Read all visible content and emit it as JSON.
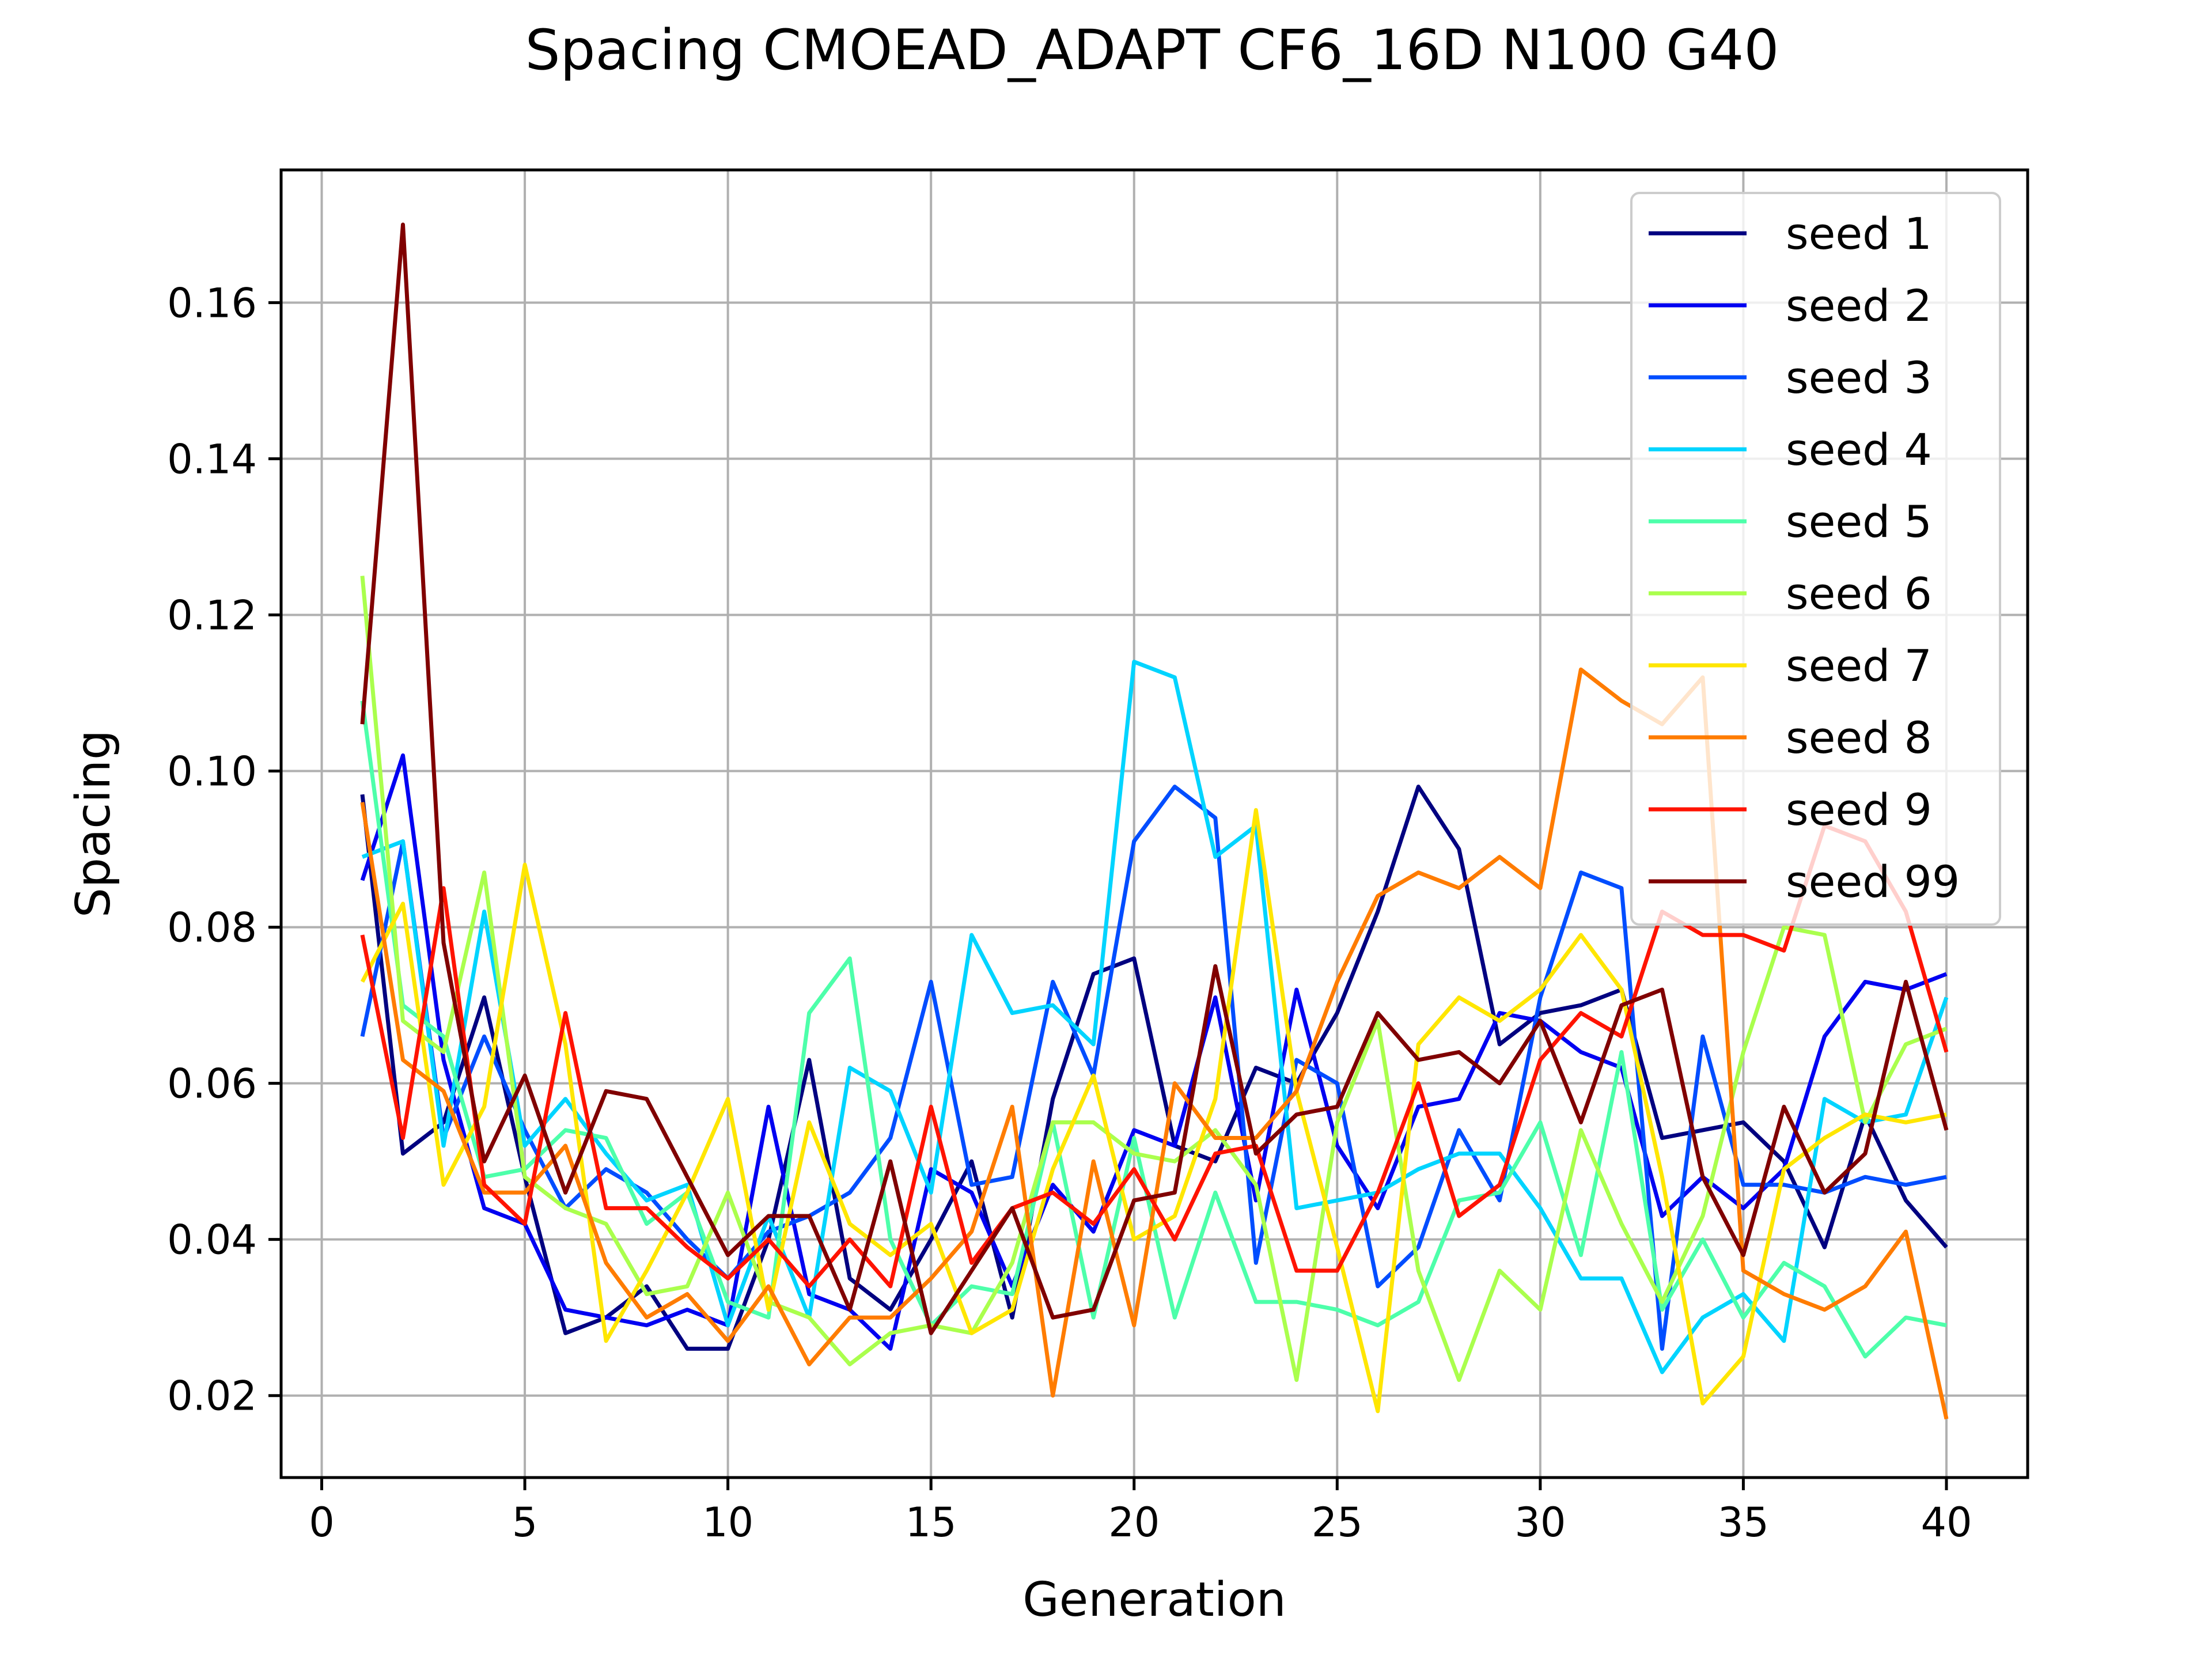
{
  "chart_data": {
    "type": "line",
    "title": "Spacing CMOEAD_ADAPT CF6_16D N100 G40",
    "xlabel": "Generation",
    "ylabel": "Spacing",
    "xlim": [
      -1,
      42
    ],
    "ylim": [
      0.0095,
      0.177
    ],
    "xticks": [
      0,
      5,
      10,
      15,
      20,
      25,
      30,
      35,
      40
    ],
    "yticks": [
      0.02,
      0.04,
      0.06,
      0.08,
      0.1,
      0.12,
      0.14,
      0.16
    ],
    "xtick_labels": [
      "0",
      "5",
      "10",
      "15",
      "20",
      "25",
      "30",
      "35",
      "40"
    ],
    "ytick_labels": [
      "0.02",
      "0.04",
      "0.06",
      "0.08",
      "0.10",
      "0.12",
      "0.14",
      "0.16"
    ],
    "grid": true,
    "legend": "top-right",
    "x": [
      1,
      2,
      3,
      4,
      5,
      6,
      7,
      8,
      9,
      10,
      11,
      12,
      13,
      14,
      15,
      16,
      17,
      18,
      19,
      20,
      21,
      22,
      23,
      24,
      25,
      26,
      27,
      28,
      29,
      30,
      31,
      32,
      33,
      34,
      35,
      36,
      37,
      38,
      39,
      40
    ],
    "series": [
      {
        "name": "seed 1",
        "color": "#000080",
        "values": [
          0.097,
          0.051,
          0.055,
          0.071,
          0.048,
          0.028,
          0.03,
          0.034,
          0.026,
          0.026,
          0.04,
          0.063,
          0.035,
          0.031,
          0.04,
          0.05,
          0.03,
          0.058,
          0.074,
          0.076,
          0.052,
          0.05,
          0.062,
          0.06,
          0.069,
          0.082,
          0.098,
          0.09,
          0.065,
          0.069,
          0.07,
          0.072,
          0.053,
          0.054,
          0.055,
          0.05,
          0.039,
          0.056,
          0.045,
          0.039
        ]
      },
      {
        "name": "seed 2",
        "color": "#0000f1",
        "values": [
          0.086,
          0.102,
          0.063,
          0.044,
          0.042,
          0.031,
          0.03,
          0.029,
          0.031,
          0.029,
          0.057,
          0.033,
          0.031,
          0.026,
          0.049,
          0.046,
          0.034,
          0.047,
          0.041,
          0.054,
          0.052,
          0.071,
          0.045,
          0.072,
          0.052,
          0.044,
          0.057,
          0.058,
          0.069,
          0.068,
          0.064,
          0.062,
          0.043,
          0.048,
          0.044,
          0.049,
          0.066,
          0.073,
          0.072,
          0.074
        ]
      },
      {
        "name": "seed 3",
        "color": "#004dff",
        "values": [
          0.066,
          0.091,
          0.053,
          0.066,
          0.054,
          0.044,
          0.049,
          0.046,
          0.04,
          0.035,
          0.041,
          0.043,
          0.046,
          0.053,
          0.073,
          0.047,
          0.048,
          0.073,
          0.061,
          0.091,
          0.098,
          0.094,
          0.037,
          0.063,
          0.06,
          0.034,
          0.039,
          0.054,
          0.045,
          0.071,
          0.087,
          0.085,
          0.026,
          0.066,
          0.047,
          0.047,
          0.046,
          0.048,
          0.047,
          0.048
        ]
      },
      {
        "name": "seed 4",
        "color": "#00d4ff",
        "values": [
          0.089,
          0.091,
          0.052,
          0.082,
          0.052,
          0.058,
          0.051,
          0.045,
          0.047,
          0.029,
          0.043,
          0.03,
          0.062,
          0.059,
          0.046,
          0.079,
          0.069,
          0.07,
          0.065,
          0.114,
          0.112,
          0.089,
          0.093,
          0.044,
          0.045,
          0.046,
          0.049,
          0.051,
          0.051,
          0.044,
          0.035,
          0.035,
          0.023,
          0.03,
          0.033,
          0.027,
          0.058,
          0.055,
          0.056,
          0.071
        ]
      },
      {
        "name": "seed 5",
        "color": "#4dffaa",
        "values": [
          0.109,
          0.07,
          0.066,
          0.048,
          0.049,
          0.054,
          0.053,
          0.042,
          0.046,
          0.032,
          0.03,
          0.069,
          0.076,
          0.04,
          0.029,
          0.034,
          0.033,
          0.055,
          0.03,
          0.053,
          0.03,
          0.046,
          0.032,
          0.032,
          0.031,
          0.029,
          0.032,
          0.045,
          0.046,
          0.055,
          0.038,
          0.064,
          0.031,
          0.04,
          0.03,
          0.037,
          0.034,
          0.025,
          0.03,
          0.029
        ]
      },
      {
        "name": "seed 6",
        "color": "#aaff4d",
        "values": [
          0.125,
          0.068,
          0.064,
          0.087,
          0.048,
          0.044,
          0.042,
          0.033,
          0.034,
          0.046,
          0.032,
          0.03,
          0.024,
          0.028,
          0.029,
          0.028,
          0.037,
          0.055,
          0.055,
          0.051,
          0.05,
          0.054,
          0.047,
          0.022,
          0.055,
          0.068,
          0.036,
          0.022,
          0.036,
          0.031,
          0.054,
          0.042,
          0.032,
          0.043,
          0.064,
          0.08,
          0.079,
          0.055,
          0.065,
          0.067
        ]
      },
      {
        "name": "seed 7",
        "color": "#ffe600",
        "values": [
          0.073,
          0.083,
          0.047,
          0.057,
          0.088,
          0.065,
          0.027,
          0.036,
          0.046,
          0.058,
          0.031,
          0.055,
          0.042,
          0.038,
          0.042,
          0.028,
          0.031,
          0.049,
          0.061,
          0.04,
          0.043,
          0.058,
          0.095,
          0.059,
          0.039,
          0.018,
          0.065,
          0.071,
          0.068,
          0.072,
          0.079,
          0.072,
          0.048,
          0.019,
          0.025,
          0.049,
          0.053,
          0.056,
          0.055,
          0.056
        ]
      },
      {
        "name": "seed 8",
        "color": "#ff7c00",
        "values": [
          0.096,
          0.063,
          0.059,
          0.046,
          0.046,
          0.052,
          0.037,
          0.03,
          0.033,
          0.027,
          0.034,
          0.024,
          0.03,
          0.03,
          0.035,
          0.041,
          0.057,
          0.02,
          0.05,
          0.029,
          0.06,
          0.053,
          0.053,
          0.059,
          0.073,
          0.084,
          0.087,
          0.085,
          0.089,
          0.085,
          0.113,
          0.109,
          0.106,
          0.112,
          0.036,
          0.033,
          0.031,
          0.034,
          0.041,
          0.017
        ]
      },
      {
        "name": "seed 9",
        "color": "#ff1300",
        "values": [
          0.079,
          0.053,
          0.085,
          0.047,
          0.042,
          0.069,
          0.044,
          0.044,
          0.039,
          0.035,
          0.04,
          0.034,
          0.04,
          0.034,
          0.057,
          0.037,
          0.044,
          0.046,
          0.042,
          0.049,
          0.04,
          0.051,
          0.052,
          0.036,
          0.036,
          0.046,
          0.06,
          0.043,
          0.047,
          0.063,
          0.069,
          0.066,
          0.082,
          0.079,
          0.079,
          0.077,
          0.093,
          0.091,
          0.082,
          0.064
        ]
      },
      {
        "name": "seed 99",
        "color": "#800000",
        "values": [
          0.106,
          0.17,
          0.078,
          0.05,
          0.061,
          0.046,
          0.059,
          0.058,
          0.048,
          0.038,
          0.043,
          0.043,
          0.031,
          0.05,
          0.028,
          0.036,
          0.044,
          0.03,
          0.031,
          0.045,
          0.046,
          0.075,
          0.051,
          0.056,
          0.057,
          0.069,
          0.063,
          0.064,
          0.06,
          0.068,
          0.055,
          0.07,
          0.072,
          0.048,
          0.038,
          0.057,
          0.046,
          0.051,
          0.073,
          0.054
        ]
      }
    ]
  }
}
